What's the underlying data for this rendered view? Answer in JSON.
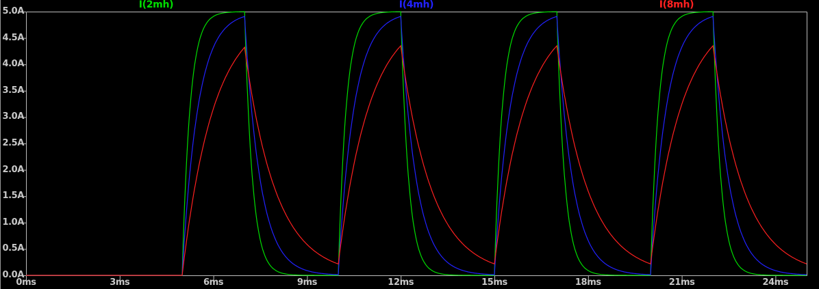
{
  "chart_data": {
    "type": "line",
    "title": "",
    "description": "Transient simulation of inductor currents for three inductance values driven by a repeating voltage pulse",
    "x_axis": {
      "unit": "ms",
      "min": 0,
      "max": 25,
      "tick_step_ms": 3,
      "labels": [
        "0ms",
        "3ms",
        "6ms",
        "9ms",
        "12ms",
        "15ms",
        "18ms",
        "21ms",
        "24ms"
      ]
    },
    "y_axis": {
      "unit": "A",
      "min": 0,
      "max": 5,
      "tick_step_A": 0.5,
      "labels": [
        "5.0A",
        "4.5A",
        "4.0A",
        "3.5A",
        "3.0A",
        "2.5A",
        "2.0A",
        "1.5A",
        "1.0A",
        "0.5A",
        "0.0A"
      ]
    },
    "grid": false,
    "legend_position": "top",
    "frame_color": "#bebebe",
    "label_color": "#c8c8c8",
    "background_color": "#000000",
    "pulse": {
      "amplitude_A": 5,
      "first_rise_ms": 5,
      "on_ms": 2,
      "period_ms": 5,
      "num_pulses": 4,
      "on_intervals_ms": [
        [
          5,
          7
        ],
        [
          10,
          12
        ],
        [
          15,
          17
        ],
        [
          20,
          22
        ]
      ]
    },
    "series": [
      {
        "name": "I(2mh)",
        "color": "#00dd00",
        "tau_ms": 0.25,
        "peak_A": 5.0,
        "min_between_pulses_A": 0.0
      },
      {
        "name": "I(4mh)",
        "color": "#2222ff",
        "tau_ms": 0.5,
        "peak_A": 4.91,
        "min_between_pulses_A": 0.06
      },
      {
        "name": "I(8mh)",
        "color": "#ff2020",
        "tau_ms": 1.0,
        "peak_A": 4.35,
        "min_between_pulses_A": 0.22
      }
    ]
  }
}
